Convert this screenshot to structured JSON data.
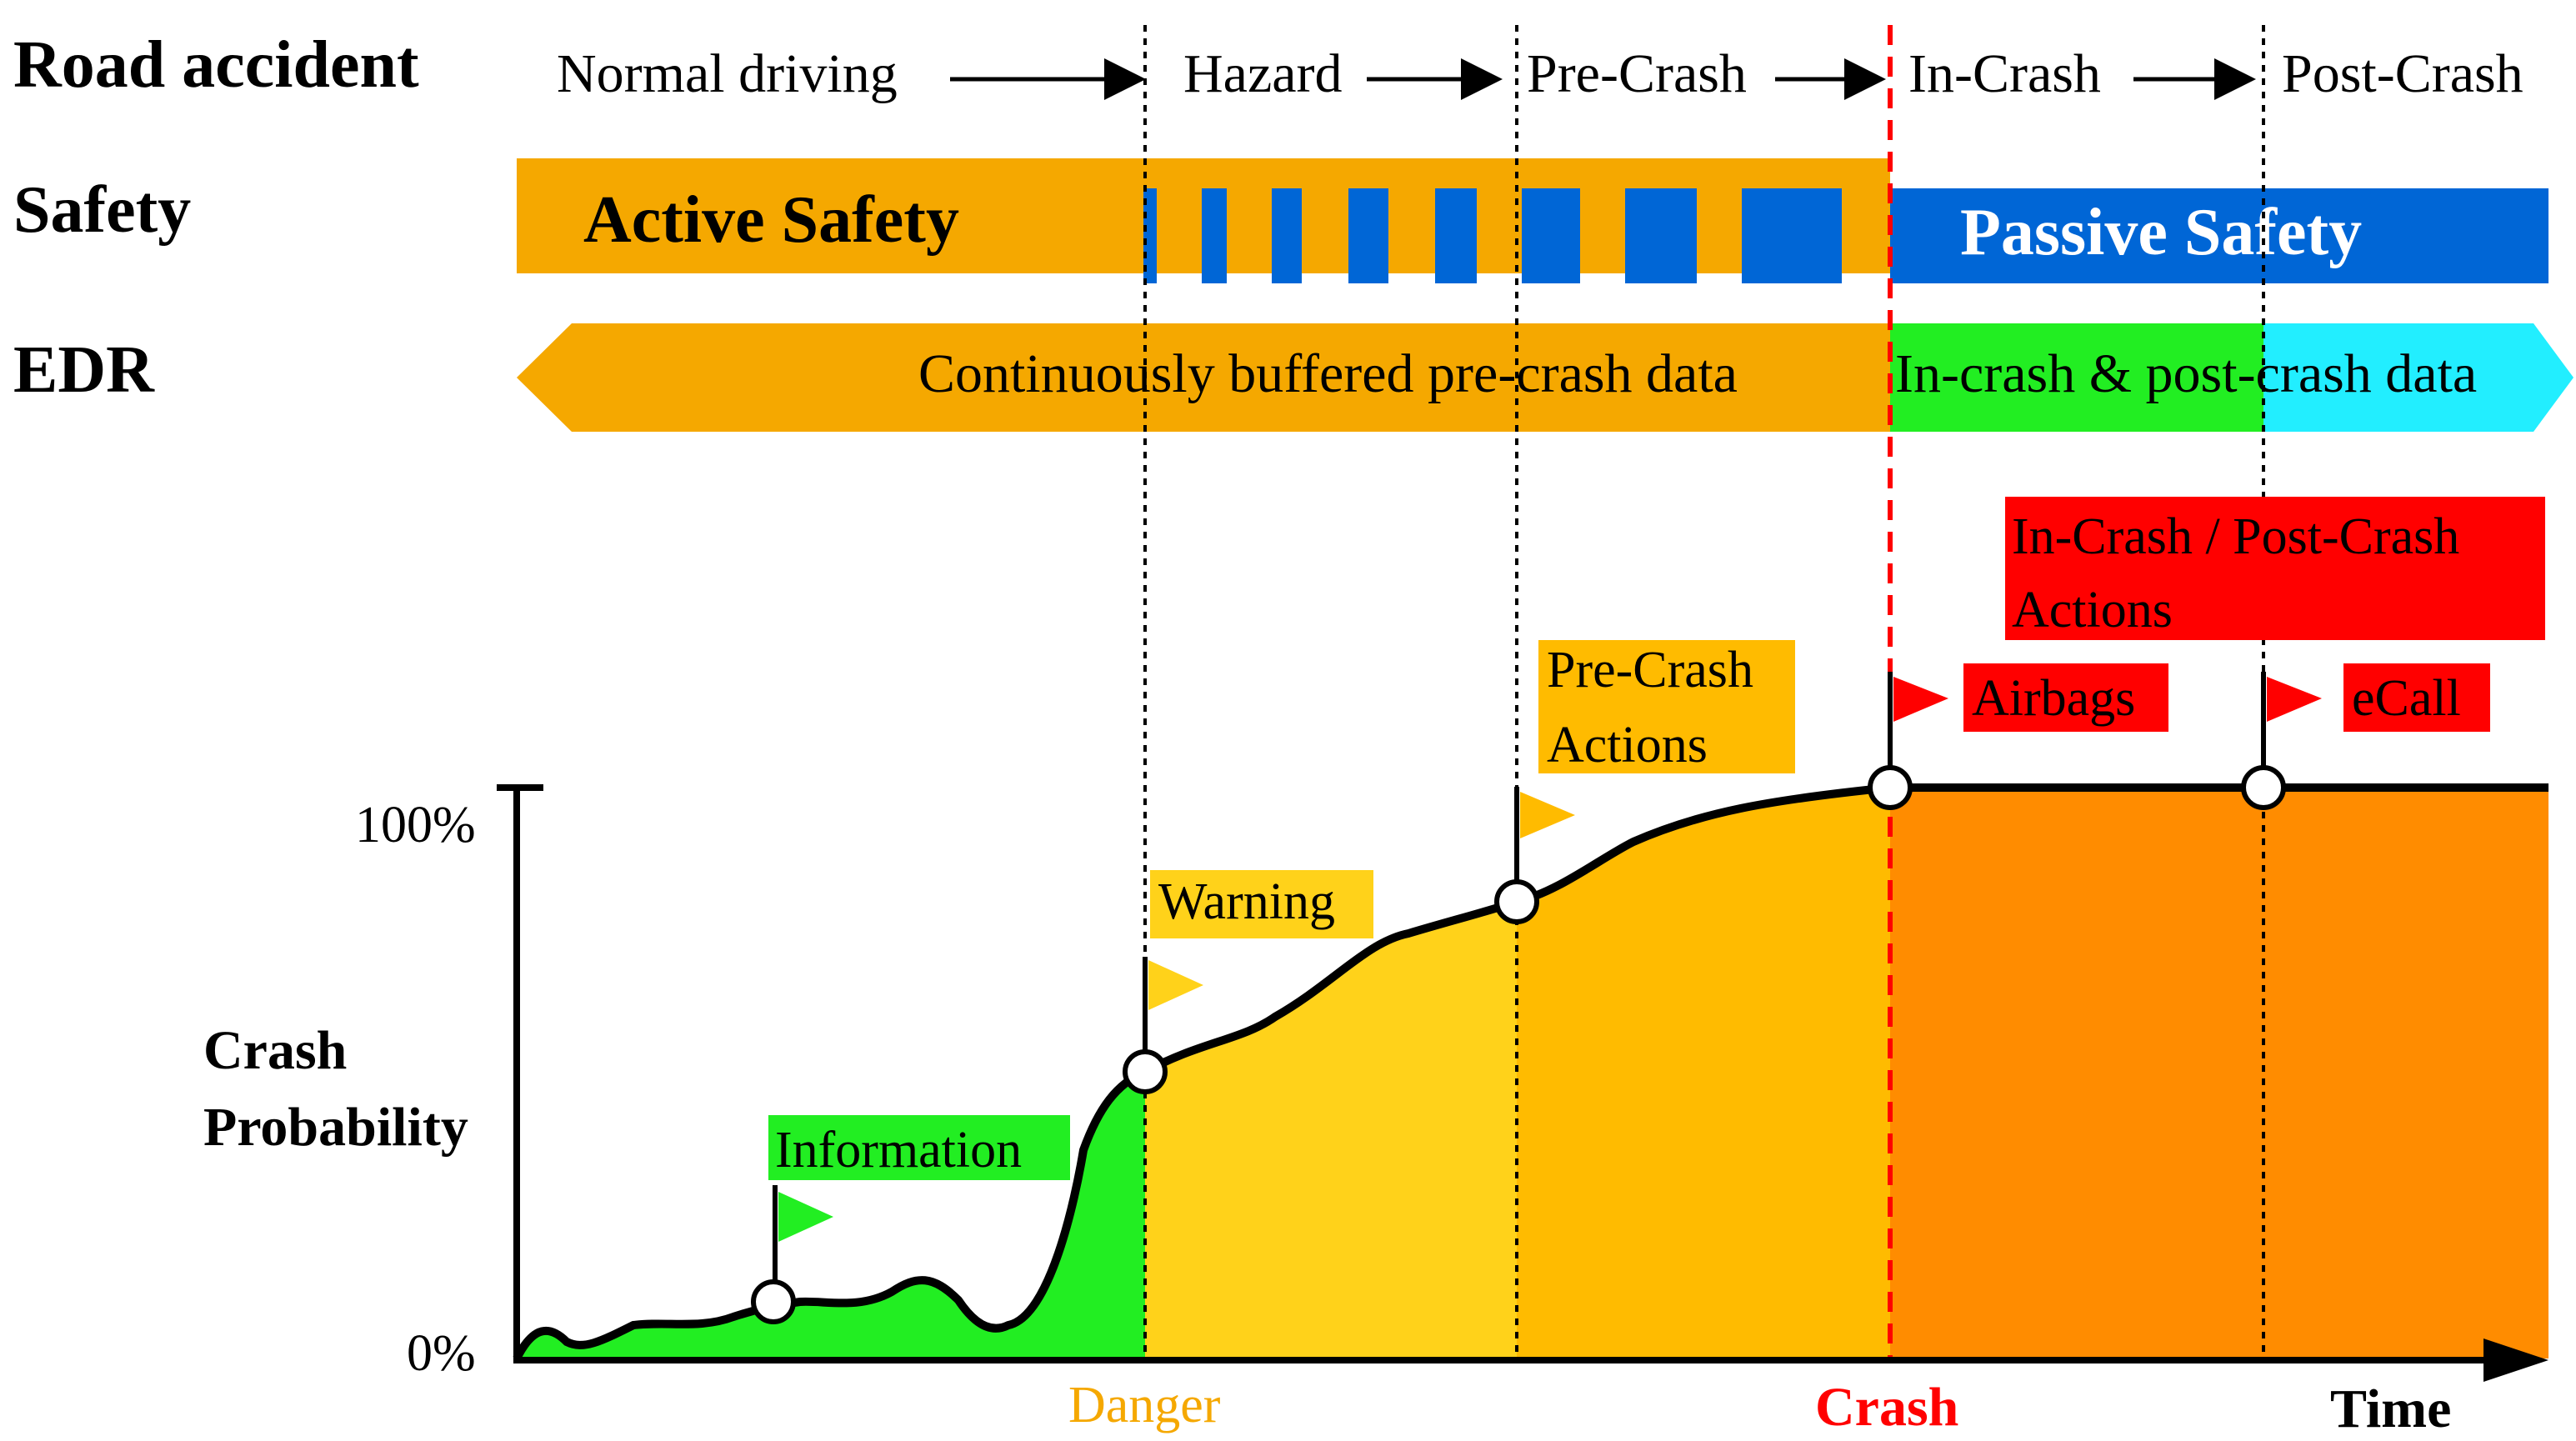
{
  "row_labels": {
    "road_accident": "Road accident",
    "safety": "Safety",
    "edr": "EDR"
  },
  "phases": {
    "normal": "Normal driving",
    "hazard": "Hazard",
    "pre_crash": "Pre-Crash",
    "in_crash": "In-Crash",
    "post_crash": "Post-Crash"
  },
  "safety": {
    "active": "Active Safety",
    "passive": "Passive Safety"
  },
  "edr": {
    "pre": "Continuously buffered pre-crash data",
    "post": "In-crash & post-crash data"
  },
  "chart": {
    "y_label_line1": "Crash",
    "y_label_line2": "Probability",
    "tick_top": "100%",
    "tick_bottom": "0%",
    "x_label": "Time",
    "danger": "Danger",
    "crash": "Crash"
  },
  "actions": {
    "information": "Information",
    "warning": "Warning",
    "pre_crash_line1": "Pre-Crash",
    "pre_crash_line2": "Actions",
    "in_post_line1": "In-Crash / Post-Crash",
    "in_post_line2": "Actions",
    "airbags": "Airbags",
    "ecall": "eCall"
  },
  "colors": {
    "active_orange": "#F5A800",
    "passive_blue": "#0066D6",
    "info_green": "#22EE22",
    "warning_yellow": "#FFD21A",
    "pre_crash_orange": "#FFB800",
    "crash_orange": "#FF8C00",
    "crash_red": "#FF0000",
    "post_cyan": "#22EEFF"
  }
}
